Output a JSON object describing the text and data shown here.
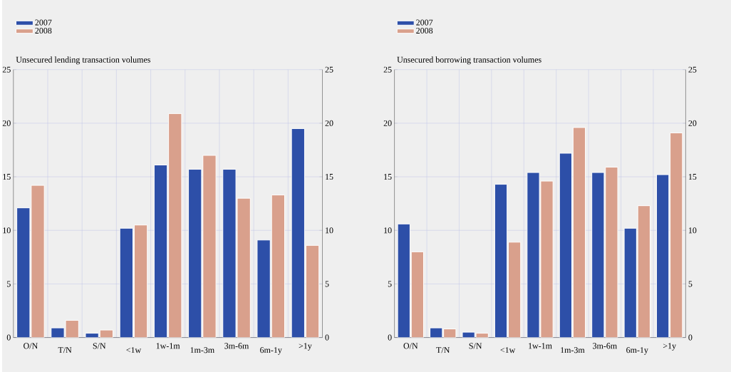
{
  "chart_data": [
    {
      "type": "bar",
      "title": "Unsecured lending transaction volumes",
      "categories": [
        "O/N",
        "T/N",
        "S/N",
        "<1w",
        "1w-1m",
        "1m-3m",
        "3m-6m",
        "6m-1y",
        ">1y"
      ],
      "series": [
        {
          "name": "2007",
          "color": "#2d4fa8",
          "values": [
            12.1,
            0.9,
            0.4,
            10.2,
            16.1,
            15.7,
            15.7,
            9.1,
            19.5
          ]
        },
        {
          "name": "2008",
          "color": "#d9a08c",
          "values": [
            14.2,
            1.6,
            0.7,
            10.5,
            20.9,
            17.0,
            13.0,
            13.3,
            8.6
          ]
        }
      ],
      "ylim": [
        0,
        25
      ],
      "yticks": [
        0,
        5,
        10,
        15,
        20,
        25
      ],
      "y2lim": [
        0,
        25
      ],
      "y2ticks": [
        0,
        5,
        10,
        15,
        20,
        25
      ],
      "grid": true,
      "legend": "top left"
    },
    {
      "type": "bar",
      "title": "Unsecured borrowing transaction volumes",
      "categories": [
        "O/N",
        "T/N",
        "S/N",
        "<1w",
        "1w-1m",
        "1m-3m",
        "3m-6m",
        "6m-1y",
        ">1y"
      ],
      "series": [
        {
          "name": "2007",
          "color": "#2d4fa8",
          "values": [
            10.6,
            0.9,
            0.5,
            14.3,
            15.4,
            17.2,
            15.4,
            10.2,
            15.2
          ]
        },
        {
          "name": "2008",
          "color": "#d9a08c",
          "values": [
            8.0,
            0.8,
            0.4,
            8.9,
            14.6,
            19.6,
            15.9,
            12.3,
            19.1
          ]
        }
      ],
      "ylim": [
        0,
        25
      ],
      "yticks": [
        0,
        5,
        10,
        15,
        20,
        25
      ],
      "y2lim": [
        0,
        25
      ],
      "y2ticks": [
        0,
        5,
        10,
        15,
        20,
        25
      ],
      "grid": true,
      "legend": "top left"
    }
  ]
}
